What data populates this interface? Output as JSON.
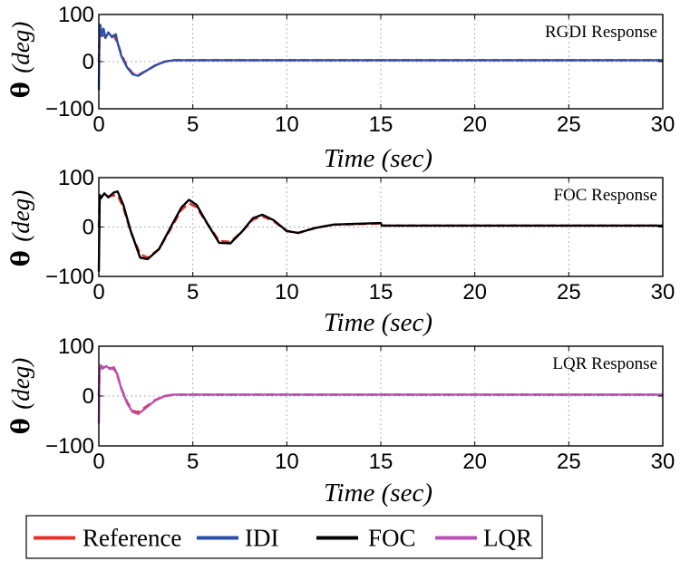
{
  "chart_data": [
    {
      "type": "line",
      "title": "RGDI Response",
      "xlabel": "Time (sec)",
      "ylabel_symbol": "θ",
      "ylabel_unit": "(deg)",
      "xlim": [
        0,
        30
      ],
      "ylim": [
        -100,
        100
      ],
      "xticks": [
        "0",
        "5",
        "10",
        "15",
        "20",
        "25",
        "30"
      ],
      "yticks": [
        "100",
        "0",
        "-100"
      ],
      "grid": true,
      "series": [
        {
          "name": "Reference",
          "color": "#e8302a",
          "dashed": true,
          "x": [
            0,
            0.05,
            0.15,
            0.3,
            0.8,
            1.0,
            1.2,
            1.5,
            1.8,
            2.1,
            2.5,
            3.0,
            3.5,
            4.0,
            5,
            10,
            15,
            20,
            25,
            30
          ],
          "y": [
            0,
            55,
            55,
            55,
            55,
            40,
            15,
            -10,
            -25,
            -28,
            -20,
            -8,
            0,
            3,
            3,
            3,
            3,
            3,
            3,
            3
          ]
        },
        {
          "name": "IDI",
          "color": "#2b4fa8",
          "dashed": false,
          "x": [
            0,
            0.03,
            0.08,
            0.15,
            0.25,
            0.35,
            0.5,
            0.7,
            0.9,
            1.0,
            1.2,
            1.5,
            1.8,
            2.1,
            2.5,
            3.0,
            3.5,
            4.0,
            5,
            10,
            15,
            20,
            25,
            30
          ],
          "y": [
            -60,
            40,
            78,
            55,
            70,
            50,
            62,
            52,
            58,
            40,
            12,
            -12,
            -27,
            -30,
            -20,
            -8,
            0,
            3,
            3,
            3,
            3,
            3,
            3,
            3
          ]
        }
      ]
    },
    {
      "type": "line",
      "title": "FOC Response",
      "xlabel": "Time (sec)",
      "ylabel_symbol": "θ",
      "ylabel_unit": "(deg)",
      "xlim": [
        0,
        30
      ],
      "ylim": [
        -100,
        100
      ],
      "xticks": [
        "0",
        "5",
        "10",
        "15",
        "20",
        "25",
        "30"
      ],
      "yticks": [
        "100",
        "0",
        "-100"
      ],
      "grid": true,
      "series": [
        {
          "name": "Reference",
          "color": "#e8302a",
          "dashed": true,
          "x": [
            0,
            0.05,
            0.5,
            1.0,
            1.3,
            1.7,
            2.2,
            2.6,
            3.2,
            3.8,
            4.4,
            4.8,
            5.2,
            5.8,
            6.4,
            7.0,
            7.6,
            8.2,
            8.7,
            9.3,
            10.0,
            10.6,
            11.5,
            12.5,
            15,
            15.05,
            20,
            25,
            30
          ],
          "y": [
            0,
            62,
            62,
            65,
            40,
            -10,
            -55,
            -62,
            -45,
            -5,
            35,
            48,
            40,
            5,
            -28,
            -30,
            -10,
            15,
            22,
            12,
            -8,
            -12,
            -2,
            5,
            7,
            3,
            3,
            3,
            3
          ]
        },
        {
          "name": "FOC",
          "color": "#000000",
          "dashed": false,
          "x": [
            0,
            0.05,
            0.1,
            0.3,
            0.5,
            0.8,
            1.0,
            1.3,
            1.7,
            2.2,
            2.6,
            3.2,
            3.8,
            4.4,
            4.8,
            5.2,
            5.8,
            6.4,
            7.0,
            7.6,
            8.2,
            8.7,
            9.3,
            10.0,
            10.6,
            11.5,
            12.5,
            15,
            15.05,
            20,
            25,
            30
          ],
          "y": [
            -90,
            65,
            58,
            68,
            60,
            70,
            72,
            45,
            -8,
            -62,
            -65,
            -45,
            -2,
            40,
            55,
            45,
            5,
            -32,
            -33,
            -10,
            18,
            25,
            14,
            -8,
            -12,
            -2,
            5,
            8,
            3,
            3,
            3,
            3
          ]
        }
      ]
    },
    {
      "type": "line",
      "title": "LQR Response",
      "xlabel": "Time (sec)",
      "ylabel_symbol": "θ",
      "ylabel_unit": "(deg)",
      "xlim": [
        0,
        30
      ],
      "ylim": [
        -100,
        100
      ],
      "xticks": [
        "0",
        "5",
        "10",
        "15",
        "20",
        "25",
        "30"
      ],
      "yticks": [
        "100",
        "0",
        "-100"
      ],
      "grid": true,
      "series": [
        {
          "name": "Reference",
          "color": "#e8302a",
          "dashed": true,
          "x": [
            0,
            0.05,
            0.15,
            0.3,
            0.8,
            1.0,
            1.2,
            1.5,
            1.8,
            2.1,
            2.5,
            3.0,
            3.5,
            4.0,
            5,
            10,
            15,
            20,
            25,
            30
          ],
          "y": [
            0,
            58,
            58,
            58,
            55,
            40,
            15,
            -12,
            -30,
            -32,
            -22,
            -8,
            0,
            3,
            3,
            3,
            3,
            3,
            3,
            3
          ]
        },
        {
          "name": "LQR",
          "color": "#b94fb6",
          "dashed": false,
          "x": [
            0,
            0.03,
            0.1,
            0.2,
            0.4,
            0.6,
            0.8,
            1.0,
            1.2,
            1.5,
            1.8,
            2.1,
            2.5,
            3.0,
            3.5,
            4.0,
            5,
            10,
            15,
            20,
            25,
            30
          ],
          "y": [
            -55,
            45,
            62,
            55,
            60,
            54,
            58,
            42,
            14,
            -14,
            -32,
            -36,
            -24,
            -9,
            0,
            3,
            3,
            3,
            3,
            3,
            3,
            3
          ]
        }
      ]
    }
  ],
  "legend": {
    "items": [
      {
        "label": "Reference",
        "color": "#e8302a"
      },
      {
        "label": "IDI",
        "color": "#2b4fa8"
      },
      {
        "label": "FOC",
        "color": "#000000"
      },
      {
        "label": "LQR",
        "color": "#b94fb6"
      }
    ]
  }
}
